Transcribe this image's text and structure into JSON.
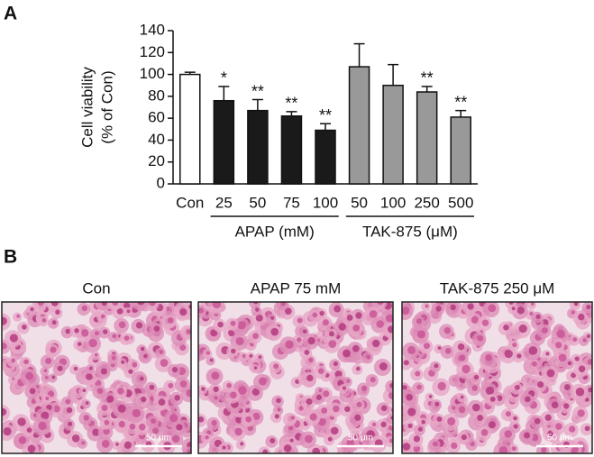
{
  "panel_label": "A",
  "chart_data": {
    "type": "bar",
    "ylabel": [
      "Cell viability",
      "(% of Con)"
    ],
    "categories": [
      "Con",
      "25",
      "50",
      "75",
      "100",
      "50",
      "100",
      "250",
      "500"
    ],
    "category_groups": [
      null,
      "APAP (mM)",
      "APAP (mM)",
      "APAP (mM)",
      "APAP (mM)",
      "TAK-875 (μM)",
      "TAK-875 (μM)",
      "TAK-875 (μM)",
      "TAK-875 (μM)"
    ],
    "values": [
      100,
      76,
      67,
      62,
      49,
      107,
      90,
      84,
      61
    ],
    "errors": [
      2,
      13,
      10,
      4,
      6,
      21,
      19,
      5,
      6
    ],
    "value_annotations": [
      null,
      "*",
      "**",
      "**",
      "**",
      null,
      null,
      "**",
      "**"
    ],
    "colors": [
      "#ffffff",
      "#1a1a1a",
      "#1a1a1a",
      "#1a1a1a",
      "#1a1a1a",
      "#999999",
      "#999999",
      "#999999",
      "#999999"
    ],
    "ylim": [
      0,
      140
    ],
    "yticks": [
      0,
      20,
      40,
      60,
      80,
      100,
      120,
      140
    ],
    "grid": false
  },
  "panel_b": {
    "label": "B",
    "images": [
      {
        "title": "Con",
        "scale_bar": "50 μm"
      },
      {
        "title": "APAP 75 mM",
        "scale_bar": "50 μm"
      },
      {
        "title": "TAK-875 250 μM",
        "scale_bar": "50 μm"
      }
    ]
  }
}
